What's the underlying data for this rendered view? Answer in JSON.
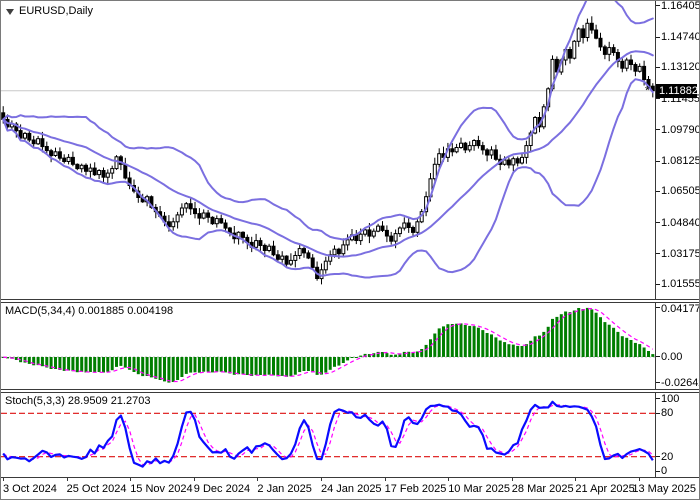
{
  "window": {
    "title": "EURUSD,Daily"
  },
  "colors": {
    "background": "#ffffff",
    "window_border": "#7a7a7a",
    "panel_border": "#3a3a3a",
    "text": "#000000",
    "candle_up_fill": "#ffffff",
    "candle_down_fill": "#000000",
    "candle_outline": "#000000",
    "bollinger": "#7b6fe0",
    "macd_histogram": "#007e00",
    "macd_signal": "#ff00ff",
    "stoch_main": "#0b0bff",
    "stoch_signal": "#ff00ff",
    "stoch_level": "#dd1111",
    "price_line": "#c8c8c8",
    "price_tag_bg": "#000000",
    "price_tag_text": "#ffffff",
    "zero_line": "#bbbbbb"
  },
  "chart_data": [
    {
      "type": "candlestick",
      "symbol": "EURUSD",
      "timeframe": "Daily",
      "last_price": 1.11882,
      "last_price_text": "1.11882",
      "y_tick_labels": [
        "1.16405",
        "1.14740",
        "1.13120",
        "1.11455",
        "1.09790",
        "1.08125",
        "1.06505",
        "1.04840",
        "1.03175",
        "1.01555"
      ],
      "y_range": [
        1.0076,
        1.1667
      ],
      "x_tick_labels": [
        "3 Oct 2024",
        "25 Oct 2024",
        "15 Nov 2024",
        "9 Dec 2024",
        "2 Jan 2025",
        "24 Jan 2025",
        "17 Feb 2025",
        "10 Mar 2025",
        "28 Mar 2025",
        "21 Apr 2025",
        "13 May 2025"
      ],
      "closes": [
        1.1035,
        1.0995,
        1.101,
        1.0975,
        1.0935,
        1.096,
        1.0925,
        1.0905,
        1.0932,
        1.089,
        1.0868,
        1.0842,
        1.0862,
        1.0828,
        1.081,
        1.0832,
        1.0795,
        1.0772,
        1.079,
        1.0758,
        1.0775,
        1.074,
        1.0762,
        1.0726,
        1.0748,
        1.0772,
        1.0835,
        1.0795,
        1.0722,
        1.0682,
        1.0652,
        1.0618,
        1.0595,
        1.0622,
        1.0565,
        1.0542,
        1.0518,
        1.0488,
        1.0462,
        1.0488,
        1.0525,
        1.0562,
        1.0585,
        1.0558,
        1.0532,
        1.0508,
        1.0535,
        1.0512,
        1.0478,
        1.0505,
        1.0482,
        1.0455,
        1.0428,
        1.0398,
        1.0432,
        1.0405,
        1.0378,
        1.0352,
        1.0388,
        1.0362,
        1.0335,
        1.0358,
        1.0312,
        1.0288,
        1.0305,
        1.0262,
        1.0282,
        1.0308,
        1.0345,
        1.0322,
        1.0295,
        1.0245,
        1.0185,
        1.0232,
        1.0278,
        1.0312,
        1.0342,
        1.0318,
        1.0365,
        1.0392,
        1.0418,
        1.0388,
        1.0422,
        1.0445,
        1.0412,
        1.0438,
        1.0465,
        1.0442,
        1.0412,
        1.0385,
        1.0425,
        1.0455,
        1.0482,
        1.0458,
        1.0432,
        1.0488,
        1.0542,
        1.0622,
        1.0718,
        1.0795,
        1.0852,
        1.0832,
        1.0878,
        1.0862,
        1.0885,
        1.0908,
        1.0872,
        1.0895,
        1.0922,
        1.0895,
        1.0872,
        1.0845,
        1.0872,
        1.0822,
        1.0795,
        1.0818,
        1.0792,
        1.0825,
        1.0802,
        1.0832,
        1.0895,
        1.0962,
        1.1045,
        1.0995,
        1.1102,
        1.1198,
        1.1355,
        1.1288,
        1.1352,
        1.1408,
        1.1362,
        1.1452,
        1.1518,
        1.1472,
        1.1548,
        1.1512,
        1.1468,
        1.1422,
        1.1382,
        1.1418,
        1.1392,
        1.1345,
        1.1308,
        1.1352,
        1.1328,
        1.1292,
        1.1318,
        1.1248,
        1.1212,
        1.11882
      ],
      "overlays": [
        {
          "name": "Bollinger Bands",
          "period": 20,
          "deviation": 2,
          "color": "#7b6fe0"
        }
      ],
      "render": {
        "first_open_offset": 0.0035,
        "wick_base": 0.0005,
        "wick_amp": 0.0033
      }
    },
    {
      "type": "bar",
      "name": "MACD",
      "label": "MACD(5,34,4)",
      "values_text": [
        "0.001885",
        "0.004198"
      ],
      "params": {
        "fast": 5,
        "slow": 34,
        "signal": 4
      },
      "y_tick_labels": [
        "0.041777",
        "0.00",
        "-0.026427"
      ]
    },
    {
      "type": "line",
      "name": "Stochastic",
      "label": "Stoch(5,3,3)",
      "values_text": [
        "28.9509",
        "21.2703"
      ],
      "params": {
        "k": 5,
        "d": 3,
        "slowing": 3
      },
      "y_tick_labels": [
        "100",
        "80",
        "20",
        "0"
      ],
      "levels": [
        80,
        20
      ],
      "y_range": [
        -8,
        108
      ]
    }
  ]
}
